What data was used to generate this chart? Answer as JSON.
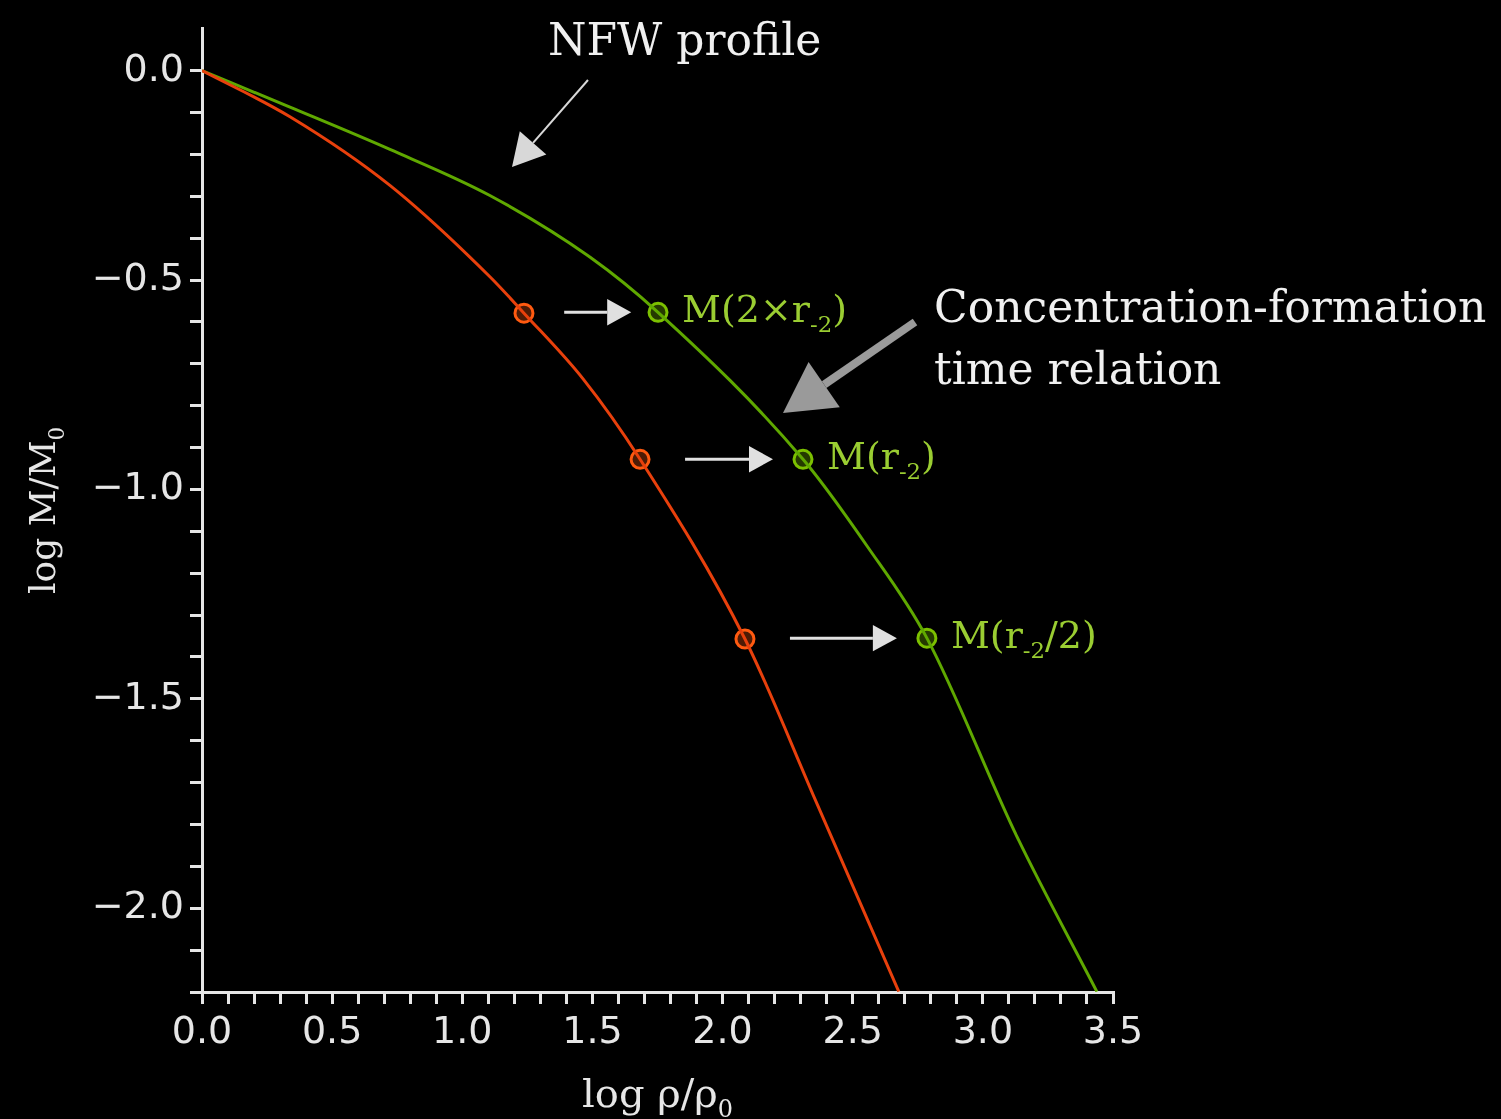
{
  "chart_data": {
    "type": "line",
    "xlabel": "log ρ/ρ$_{0}$",
    "ylabel": "log M/M$_{0}$",
    "xlim": [
      0,
      3.5
    ],
    "ylim": [
      -2.2,
      0.1
    ],
    "xticks": [
      {
        "value": 0,
        "label": "0.0"
      },
      {
        "value": 0.1,
        "label": null
      },
      {
        "value": 0.2,
        "label": null
      },
      {
        "value": 0.3,
        "label": null
      },
      {
        "value": 0.4,
        "label": null
      },
      {
        "value": 0.5,
        "label": "0.5"
      },
      {
        "value": 0.6,
        "label": null
      },
      {
        "value": 0.7,
        "label": null
      },
      {
        "value": 0.8,
        "label": null
      },
      {
        "value": 0.9,
        "label": null
      },
      {
        "value": 1,
        "label": "1.0"
      },
      {
        "value": 1.1,
        "label": null
      },
      {
        "value": 1.2,
        "label": null
      },
      {
        "value": 1.3,
        "label": null
      },
      {
        "value": 1.4,
        "label": null
      },
      {
        "value": 1.5,
        "label": "1.5"
      },
      {
        "value": 1.6,
        "label": null
      },
      {
        "value": 1.7,
        "label": null
      },
      {
        "value": 1.8,
        "label": null
      },
      {
        "value": 1.9,
        "label": null
      },
      {
        "value": 2,
        "label": "2.0"
      },
      {
        "value": 2.1,
        "label": null
      },
      {
        "value": 2.2,
        "label": null
      },
      {
        "value": 2.3,
        "label": null
      },
      {
        "value": 2.4,
        "label": null
      },
      {
        "value": 2.5,
        "label": "2.5"
      },
      {
        "value": 2.6,
        "label": null
      },
      {
        "value": 2.7,
        "label": null
      },
      {
        "value": 2.8,
        "label": null
      },
      {
        "value": 2.9,
        "label": null
      },
      {
        "value": 3,
        "label": "3.0"
      },
      {
        "value": 3.1,
        "label": null
      },
      {
        "value": 3.2,
        "label": null
      },
      {
        "value": 3.3,
        "label": null
      },
      {
        "value": 3.4,
        "label": null
      },
      {
        "value": 3.5,
        "label": "3.5"
      }
    ],
    "yticks": [
      {
        "value": -2.2,
        "label": null
      },
      {
        "value": -2.1,
        "label": null
      },
      {
        "value": -2,
        "label": "−2.0"
      },
      {
        "value": -1.9,
        "label": null
      },
      {
        "value": -1.8,
        "label": null
      },
      {
        "value": -1.7,
        "label": null
      },
      {
        "value": -1.6,
        "label": null
      },
      {
        "value": -1.5,
        "label": "−1.5"
      },
      {
        "value": -1.4,
        "label": null
      },
      {
        "value": -1.3,
        "label": null
      },
      {
        "value": -1.2,
        "label": null
      },
      {
        "value": -1.1,
        "label": null
      },
      {
        "value": -1,
        "label": "−1.0"
      },
      {
        "value": -0.9,
        "label": null
      },
      {
        "value": -0.8,
        "label": null
      },
      {
        "value": -0.7,
        "label": null
      },
      {
        "value": -0.6,
        "label": null
      },
      {
        "value": -0.5,
        "label": "−0.5"
      },
      {
        "value": -0.4,
        "label": null
      },
      {
        "value": -0.3,
        "label": null
      },
      {
        "value": -0.2,
        "label": null
      },
      {
        "value": -0.1,
        "label": null
      },
      {
        "value": 0,
        "label": "0.0"
      }
    ],
    "grid": false,
    "legend": false,
    "series": [
      {
        "marker": "none",
        "color": "#e8400c",
        "x": [
          0,
          0.338,
          0.722,
          1.106,
          1.237,
          1.464,
          1.683,
          2.086,
          2.363,
          2.677
        ],
        "values": [
          0,
          -0.11,
          -0.274,
          -0.492,
          -0.579,
          -0.736,
          -0.928,
          -1.357,
          -1.751,
          -2.199
        ]
      },
      {
        "marker": "none",
        "color": "#5fa800",
        "x": [
          0,
          0.338,
          0.722,
          1.106,
          1.49,
          1.752,
          2.309,
          2.555,
          2.785,
          3.131,
          3.438
        ],
        "values": [
          0,
          -0.087,
          -0.188,
          -0.298,
          -0.445,
          -0.577,
          -0.928,
          -1.135,
          -1.355,
          -1.829,
          -2.199
        ]
      },
      {
        "type": "scatter",
        "marker": "circle",
        "color": "#ff5a10",
        "x": [
          1.237,
          1.683,
          2.086
        ],
        "values": [
          -0.579,
          -0.928,
          -1.357
        ]
      },
      {
        "type": "scatter",
        "marker": "circle",
        "color": "#7cc000",
        "x": [
          1.752,
          2.309,
          2.785
        ],
        "values": [
          -0.577,
          -0.928,
          -1.355
        ]
      }
    ],
    "annotations": [
      "NFW profile",
      "Concentration-formation time relation",
      {
        "text": "M(2×r$_{-2}$)",
        "x": 1.752,
        "y": -0.577
      },
      {
        "text": "M(r$_{-2}$)",
        "x": 2.309,
        "y": -0.928
      },
      {
        "text": "M(r$_{-2}$/2)",
        "x": 2.785,
        "y": -1.355
      }
    ]
  }
}
